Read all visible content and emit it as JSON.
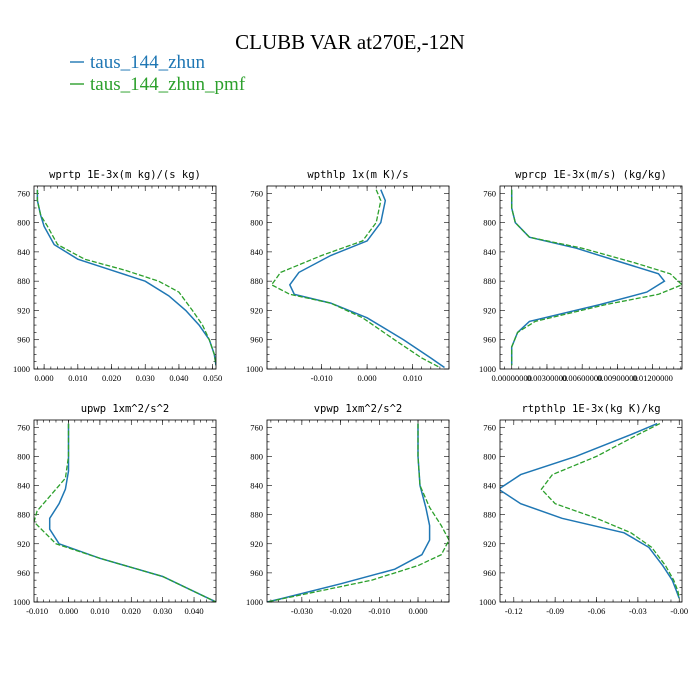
{
  "figure": {
    "title": "CLUBB VAR at270E,-12N",
    "colors": {
      "zhun": "#1f77b4",
      "zhun_pmf": "#2ca02c"
    }
  },
  "legend": [
    {
      "name": "taus_144_zhun",
      "color": "#1f77b4",
      "style": "solid"
    },
    {
      "name": "taus_144_zhun_pmf",
      "color": "#2ca02c",
      "style": "dashed"
    }
  ],
  "chart_data": [
    {
      "type": "line",
      "title": "wprtp  1E-3x(m kg)/(s kg)",
      "xlim": [
        -0.003,
        0.051
      ],
      "ylim": [
        1000,
        750
      ],
      "yticks": [
        760,
        800,
        840,
        880,
        920,
        960,
        1000
      ],
      "xticks": [
        0.0,
        0.01,
        0.02,
        0.03,
        0.04,
        0.05
      ],
      "xticklabels": [
        "0.000",
        "0.010",
        "0.020",
        "0.030",
        "0.040",
        "0.050"
      ],
      "series": [
        {
          "name": "taus_144_zhun",
          "x": [
            -0.002,
            -0.002,
            -0.001,
            0.0,
            0.003,
            0.01,
            0.02,
            0.03,
            0.037,
            0.042,
            0.046,
            0.049,
            0.0505,
            0.051
          ],
          "y": [
            755,
            770,
            790,
            805,
            830,
            850,
            865,
            880,
            900,
            920,
            940,
            960,
            980,
            995
          ]
        },
        {
          "name": "taus_144_zhun_pmf",
          "x": [
            -0.002,
            -0.002,
            -0.001,
            0.001,
            0.004,
            0.012,
            0.024,
            0.034,
            0.04,
            0.044,
            0.047,
            0.049,
            0.0505,
            0.051
          ],
          "y": [
            755,
            770,
            790,
            805,
            830,
            850,
            865,
            880,
            895,
            920,
            940,
            960,
            980,
            995
          ]
        }
      ]
    },
    {
      "type": "line",
      "title": "wpthlp  1x(m K)/s",
      "xlim": [
        -0.022,
        0.018
      ],
      "ylim": [
        1000,
        750
      ],
      "yticks": [
        760,
        800,
        840,
        880,
        920,
        960,
        1000
      ],
      "xticks": [
        -0.01,
        0.0,
        0.01
      ],
      "xticklabels": [
        "-0.010",
        "0.000",
        "0.010"
      ],
      "series": [
        {
          "name": "taus_144_zhun",
          "x": [
            0.003,
            0.004,
            0.003,
            0.0,
            -0.008,
            -0.015,
            -0.017,
            -0.016,
            -0.008,
            0.0,
            0.008,
            0.014,
            0.017
          ],
          "y": [
            755,
            770,
            800,
            825,
            845,
            868,
            885,
            898,
            910,
            930,
            960,
            985,
            998
          ]
        },
        {
          "name": "taus_144_zhun_pmf",
          "x": [
            0.002,
            0.003,
            0.002,
            -0.001,
            -0.01,
            -0.019,
            -0.021,
            -0.017,
            -0.008,
            -0.001,
            0.006,
            0.012,
            0.016
          ],
          "y": [
            755,
            770,
            800,
            825,
            845,
            868,
            885,
            898,
            910,
            930,
            960,
            985,
            998
          ]
        }
      ]
    },
    {
      "type": "line",
      "title": "wprcp  1E-3x(m/s) (kg/kg)",
      "xlim": [
        -0.001,
        0.0145
      ],
      "ylim": [
        1000,
        750
      ],
      "yticks": [
        760,
        800,
        840,
        880,
        920,
        960,
        1000
      ],
      "xticks": [
        0.0,
        0.003,
        0.006,
        0.009,
        0.012
      ],
      "xticklabels": [
        "0.00000000",
        "0.00300000",
        "0.00600000",
        "0.00900000",
        "0.01200000"
      ],
      "series": [
        {
          "name": "taus_144_zhun",
          "x": [
            0.0,
            0.0,
            0.0003,
            0.0015,
            0.0055,
            0.0095,
            0.0125,
            0.013,
            0.0115,
            0.0075,
            0.0015,
            0.0005,
            0.0,
            0.0
          ],
          "y": [
            755,
            780,
            800,
            820,
            835,
            855,
            870,
            880,
            895,
            912,
            935,
            950,
            970,
            995
          ]
        },
        {
          "name": "taus_144_zhun_pmf",
          "x": [
            0.0,
            0.0,
            0.0003,
            0.0015,
            0.006,
            0.0105,
            0.0135,
            0.0145,
            0.0125,
            0.008,
            0.002,
            0.0005,
            0.0,
            0.0
          ],
          "y": [
            755,
            780,
            800,
            820,
            835,
            855,
            870,
            885,
            898,
            912,
            935,
            950,
            970,
            995
          ]
        }
      ]
    },
    {
      "type": "line",
      "title": "upwp  1xm^2/s^2",
      "xlim": [
        -0.011,
        0.047
      ],
      "ylim": [
        1000,
        750
      ],
      "yticks": [
        760,
        800,
        840,
        880,
        920,
        960,
        1000
      ],
      "xticks": [
        -0.01,
        0.0,
        0.01,
        0.02,
        0.03,
        0.04
      ],
      "xticklabels": [
        "-0.010",
        "0.000",
        "0.010",
        "0.020",
        "0.030",
        "0.040"
      ],
      "series": [
        {
          "name": "taus_144_zhun",
          "x": [
            0.0,
            0.0,
            -0.001,
            -0.003,
            -0.006,
            -0.006,
            -0.003,
            0.01,
            0.03,
            0.047
          ],
          "y": [
            755,
            820,
            845,
            865,
            885,
            900,
            920,
            940,
            965,
            1000
          ]
        },
        {
          "name": "taus_144_zhun_pmf",
          "x": [
            0.0,
            0.0,
            -0.001,
            -0.005,
            -0.01,
            -0.011,
            -0.004,
            0.01,
            0.03,
            0.047
          ],
          "y": [
            755,
            800,
            830,
            850,
            875,
            890,
            920,
            940,
            965,
            1000
          ]
        }
      ]
    },
    {
      "type": "line",
      "title": "vpwp  1xm^2/s^2",
      "xlim": [
        -0.039,
        0.008
      ],
      "ylim": [
        1000,
        750
      ],
      "yticks": [
        760,
        800,
        840,
        880,
        920,
        960,
        1000
      ],
      "xticks": [
        -0.03,
        -0.02,
        -0.01,
        0.0
      ],
      "xticklabels": [
        "-0.030",
        "-0.020",
        "-0.010",
        "0.000"
      ],
      "series": [
        {
          "name": "taus_144_zhun",
          "x": [
            0.0,
            0.0,
            0.0005,
            0.002,
            0.003,
            0.003,
            0.001,
            -0.006,
            -0.02,
            -0.035,
            -0.039
          ],
          "y": [
            755,
            800,
            840,
            870,
            895,
            915,
            935,
            955,
            975,
            995,
            1000
          ]
        },
        {
          "name": "taus_144_zhun_pmf",
          "x": [
            0.0,
            0.0,
            0.0005,
            0.003,
            0.006,
            0.008,
            0.006,
            0.0,
            -0.012,
            -0.03,
            -0.039
          ],
          "y": [
            755,
            800,
            840,
            870,
            895,
            915,
            935,
            950,
            970,
            990,
            1000
          ]
        }
      ]
    },
    {
      "type": "line",
      "title": "rtpthlp  1E-3x(kg K)/kg",
      "xlim": [
        -0.13,
        0.002
      ],
      "ylim": [
        1000,
        750
      ],
      "yticks": [
        760,
        800,
        840,
        880,
        920,
        960,
        1000
      ],
      "xticks": [
        -0.12,
        -0.09,
        -0.06,
        -0.03,
        0.0
      ],
      "xticklabels": [
        "-0.12",
        "-0.09",
        "-0.06",
        "-0.03",
        "-0.00"
      ],
      "series": [
        {
          "name": "taus_144_zhun",
          "x": [
            -0.016,
            -0.035,
            -0.075,
            -0.115,
            -0.131,
            -0.115,
            -0.085,
            -0.04,
            -0.022,
            -0.012,
            -0.005,
            -0.002,
            0.0
          ],
          "y": [
            755,
            770,
            800,
            825,
            845,
            865,
            885,
            905,
            925,
            950,
            970,
            985,
            995
          ]
        },
        {
          "name": "taus_144_zhun_pmf",
          "x": [
            -0.014,
            -0.03,
            -0.06,
            -0.092,
            -0.1,
            -0.09,
            -0.06,
            -0.035,
            -0.02,
            -0.01,
            -0.004,
            -0.001,
            0.0
          ],
          "y": [
            755,
            770,
            800,
            825,
            845,
            865,
            885,
            905,
            925,
            950,
            970,
            985,
            995
          ]
        }
      ]
    }
  ]
}
